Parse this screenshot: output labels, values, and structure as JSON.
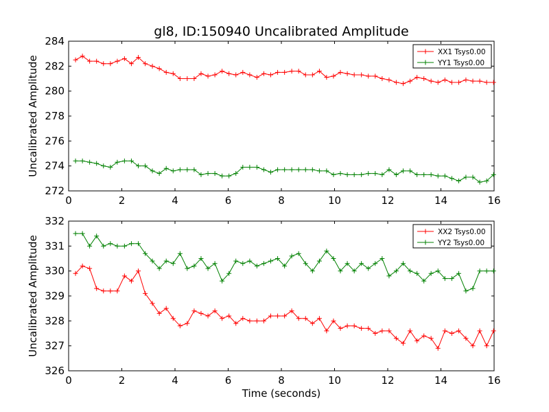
{
  "figure": {
    "title": "gl8, ID:150940 Uncalibrated Amplitude",
    "xlabel": "Time (seconds)"
  },
  "colors": {
    "XX": "#ff0000",
    "YY": "#008000",
    "axis": "#000000",
    "background": "#ffffff"
  },
  "chart_data": [
    {
      "type": "line",
      "title": "gl8, ID:150940 Uncalibrated Amplitude",
      "xlabel": "",
      "ylabel": "Uncalibrated Amplitude",
      "xlim": [
        0,
        16
      ],
      "ylim": [
        272,
        284
      ],
      "xticks": [
        0,
        2,
        4,
        6,
        8,
        10,
        12,
        14,
        16
      ],
      "yticks": [
        272,
        274,
        276,
        278,
        280,
        282,
        284
      ],
      "grid": false,
      "legend_position": "top-right",
      "marker": "+",
      "x": [
        0.26,
        0.52,
        0.79,
        1.05,
        1.31,
        1.57,
        1.83,
        2.1,
        2.36,
        2.62,
        2.88,
        3.15,
        3.41,
        3.67,
        3.93,
        4.19,
        4.46,
        4.72,
        4.98,
        5.24,
        5.5,
        5.77,
        6.03,
        6.29,
        6.55,
        6.81,
        7.08,
        7.34,
        7.6,
        7.86,
        8.12,
        8.39,
        8.65,
        8.91,
        9.17,
        9.43,
        9.7,
        9.96,
        10.22,
        10.48,
        10.74,
        11.01,
        11.27,
        11.53,
        11.79,
        12.05,
        12.32,
        12.58,
        12.84,
        13.1,
        13.36,
        13.63,
        13.89,
        14.15,
        14.41,
        14.67,
        14.94,
        15.2,
        15.46,
        15.72,
        15.98
      ],
      "series": [
        {
          "name": "XX1 Tsys0.00",
          "color": "#ff0000",
          "values": [
            282.5,
            282.8,
            282.4,
            282.4,
            282.2,
            282.2,
            282.4,
            282.6,
            282.2,
            282.7,
            282.2,
            282.0,
            281.8,
            281.5,
            281.4,
            281.0,
            281.0,
            281.0,
            281.4,
            281.2,
            281.3,
            281.6,
            281.4,
            281.3,
            281.5,
            281.3,
            281.1,
            281.4,
            281.3,
            281.5,
            281.5,
            281.6,
            281.6,
            281.3,
            281.3,
            281.6,
            281.1,
            281.2,
            281.5,
            281.4,
            281.3,
            281.3,
            281.2,
            281.2,
            281.0,
            280.9,
            280.7,
            280.6,
            280.8,
            281.1,
            281.0,
            280.8,
            280.7,
            280.9,
            280.7,
            280.7,
            280.9,
            280.8,
            280.8,
            280.7,
            280.7
          ]
        },
        {
          "name": "YY1 Tsys0.00",
          "color": "#008000",
          "values": [
            274.4,
            274.4,
            274.3,
            274.2,
            274.0,
            273.9,
            274.3,
            274.4,
            274.4,
            274.0,
            274.0,
            273.6,
            273.4,
            273.8,
            273.6,
            273.7,
            273.7,
            273.7,
            273.3,
            273.4,
            273.4,
            273.2,
            273.2,
            273.4,
            273.9,
            273.9,
            273.9,
            273.7,
            273.5,
            273.7,
            273.7,
            273.7,
            273.7,
            273.7,
            273.7,
            273.6,
            273.6,
            273.3,
            273.4,
            273.3,
            273.3,
            273.3,
            273.4,
            273.4,
            273.3,
            273.7,
            273.3,
            273.6,
            273.6,
            273.3,
            273.3,
            273.3,
            273.2,
            273.2,
            273.0,
            272.8,
            273.1,
            273.1,
            272.7,
            272.8,
            273.3
          ]
        }
      ]
    },
    {
      "type": "line",
      "title": "",
      "xlabel": "Time (seconds)",
      "ylabel": "Uncalibrated Amplitude",
      "xlim": [
        0,
        16
      ],
      "ylim": [
        326,
        332
      ],
      "xticks": [
        0,
        2,
        4,
        6,
        8,
        10,
        12,
        14,
        16
      ],
      "yticks": [
        326,
        327,
        328,
        329,
        330,
        331,
        332
      ],
      "grid": false,
      "legend_position": "top-right",
      "marker": "+",
      "x": [
        0.26,
        0.52,
        0.79,
        1.05,
        1.31,
        1.57,
        1.83,
        2.1,
        2.36,
        2.62,
        2.88,
        3.15,
        3.41,
        3.67,
        3.93,
        4.19,
        4.46,
        4.72,
        4.98,
        5.24,
        5.5,
        5.77,
        6.03,
        6.29,
        6.55,
        6.81,
        7.08,
        7.34,
        7.6,
        7.86,
        8.12,
        8.39,
        8.65,
        8.91,
        9.17,
        9.43,
        9.7,
        9.96,
        10.22,
        10.48,
        10.74,
        11.01,
        11.27,
        11.53,
        11.79,
        12.05,
        12.32,
        12.58,
        12.84,
        13.1,
        13.36,
        13.63,
        13.89,
        14.15,
        14.41,
        14.67,
        14.94,
        15.2,
        15.46,
        15.72,
        15.98
      ],
      "series": [
        {
          "name": "XX2 Tsys0.00",
          "color": "#ff0000",
          "values": [
            329.9,
            330.2,
            330.1,
            329.3,
            329.2,
            329.2,
            329.2,
            329.8,
            329.6,
            330.0,
            329.1,
            328.7,
            328.3,
            328.5,
            328.1,
            327.8,
            327.9,
            328.4,
            328.3,
            328.2,
            328.4,
            328.1,
            328.2,
            327.9,
            328.1,
            328.0,
            328.0,
            328.0,
            328.2,
            328.2,
            328.2,
            328.4,
            328.1,
            328.1,
            327.9,
            328.1,
            327.6,
            328.0,
            327.7,
            327.8,
            327.8,
            327.7,
            327.7,
            327.5,
            327.6,
            327.6,
            327.3,
            327.1,
            327.6,
            327.2,
            327.4,
            327.3,
            326.9,
            327.6,
            327.5,
            327.6,
            327.3,
            327.0,
            327.6,
            327.0,
            327.6
          ]
        },
        {
          "name": "YY2 Tsys0.00",
          "color": "#008000",
          "values": [
            331.5,
            331.5,
            331.0,
            331.4,
            331.0,
            331.1,
            331.0,
            331.0,
            331.1,
            331.1,
            330.7,
            330.4,
            330.1,
            330.4,
            330.3,
            330.7,
            330.1,
            330.2,
            330.5,
            330.1,
            330.3,
            329.6,
            329.9,
            330.4,
            330.3,
            330.4,
            330.2,
            330.3,
            330.4,
            330.5,
            330.2,
            330.6,
            330.7,
            330.3,
            330.0,
            330.4,
            330.8,
            330.5,
            330.0,
            330.3,
            330.0,
            330.3,
            330.1,
            330.3,
            330.5,
            329.8,
            330.0,
            330.3,
            330.0,
            329.9,
            329.6,
            329.9,
            330.0,
            329.7,
            329.7,
            329.9,
            329.2,
            329.3,
            330.0,
            330.0,
            330.0
          ]
        }
      ]
    }
  ]
}
